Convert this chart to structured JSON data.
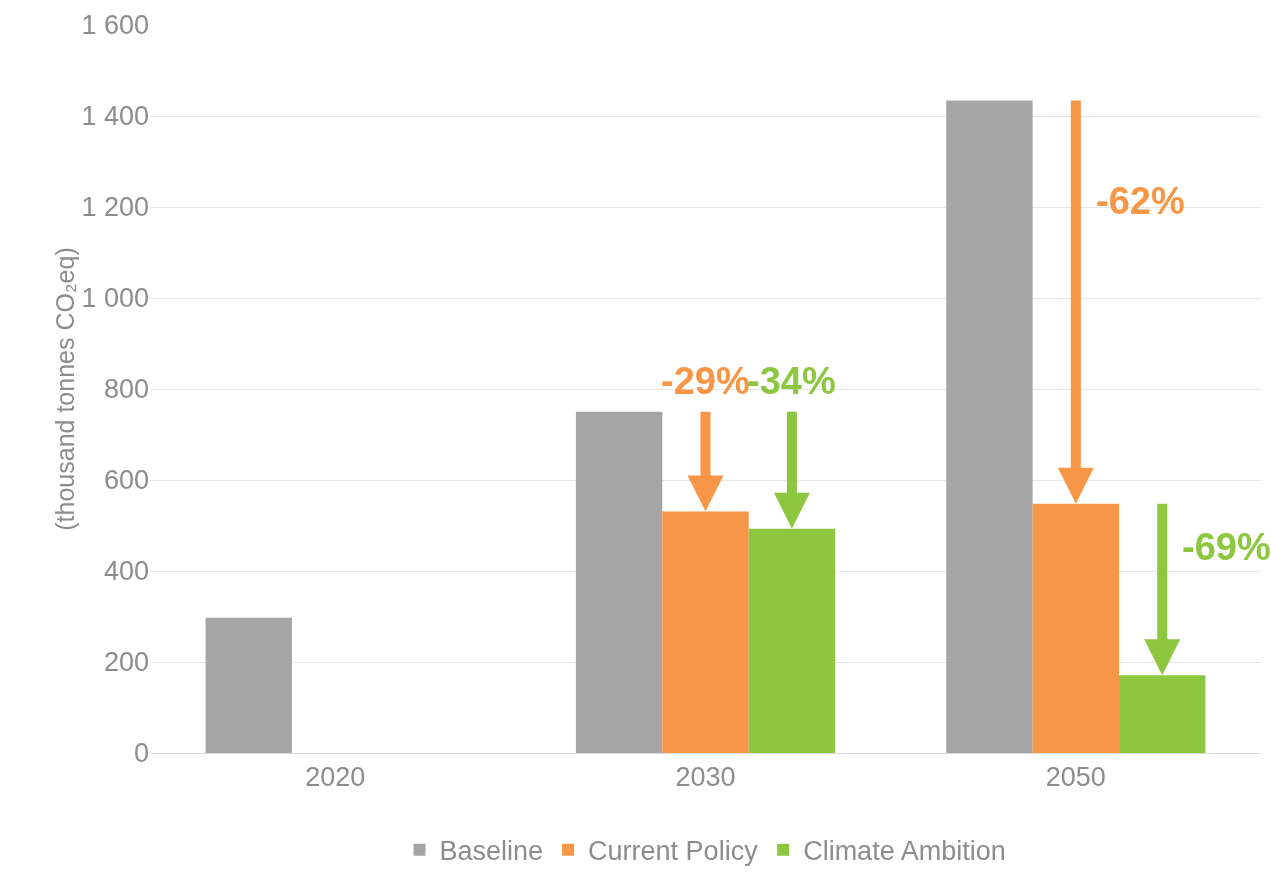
{
  "chart_data": {
    "type": "bar",
    "ylabel": "(thousand tonnes CO₂eq)",
    "categories": [
      "2020",
      "2030",
      "2050"
    ],
    "series": [
      {
        "name": "Baseline",
        "color": "#a5a5a5",
        "values": [
          297,
          750,
          1434
        ]
      },
      {
        "name": "Current Policy",
        "color": "#f79646",
        "values": [
          null,
          531,
          548
        ]
      },
      {
        "name": "Climate Ambition",
        "color": "#8dc63f",
        "values": [
          null,
          493,
          171
        ]
      }
    ],
    "ylim": [
      0,
      1600
    ],
    "yticks": [
      0,
      {
        "value": 200,
        "label": "200"
      },
      {
        "value": 400,
        "label": "400"
      },
      {
        "value": 600,
        "label": "600"
      },
      {
        "value": 800,
        "label": "800"
      },
      {
        "value": 1000,
        "label": "1 000"
      },
      {
        "value": 1200,
        "label": "1 200"
      },
      {
        "value": 1400,
        "label": "1 400"
      },
      {
        "value": 1600,
        "label": "1 600"
      }
    ],
    "grid": "y",
    "legend": "bottom",
    "annotations": [
      "-29%",
      "-34%",
      "-62%",
      "-69%"
    ]
  }
}
